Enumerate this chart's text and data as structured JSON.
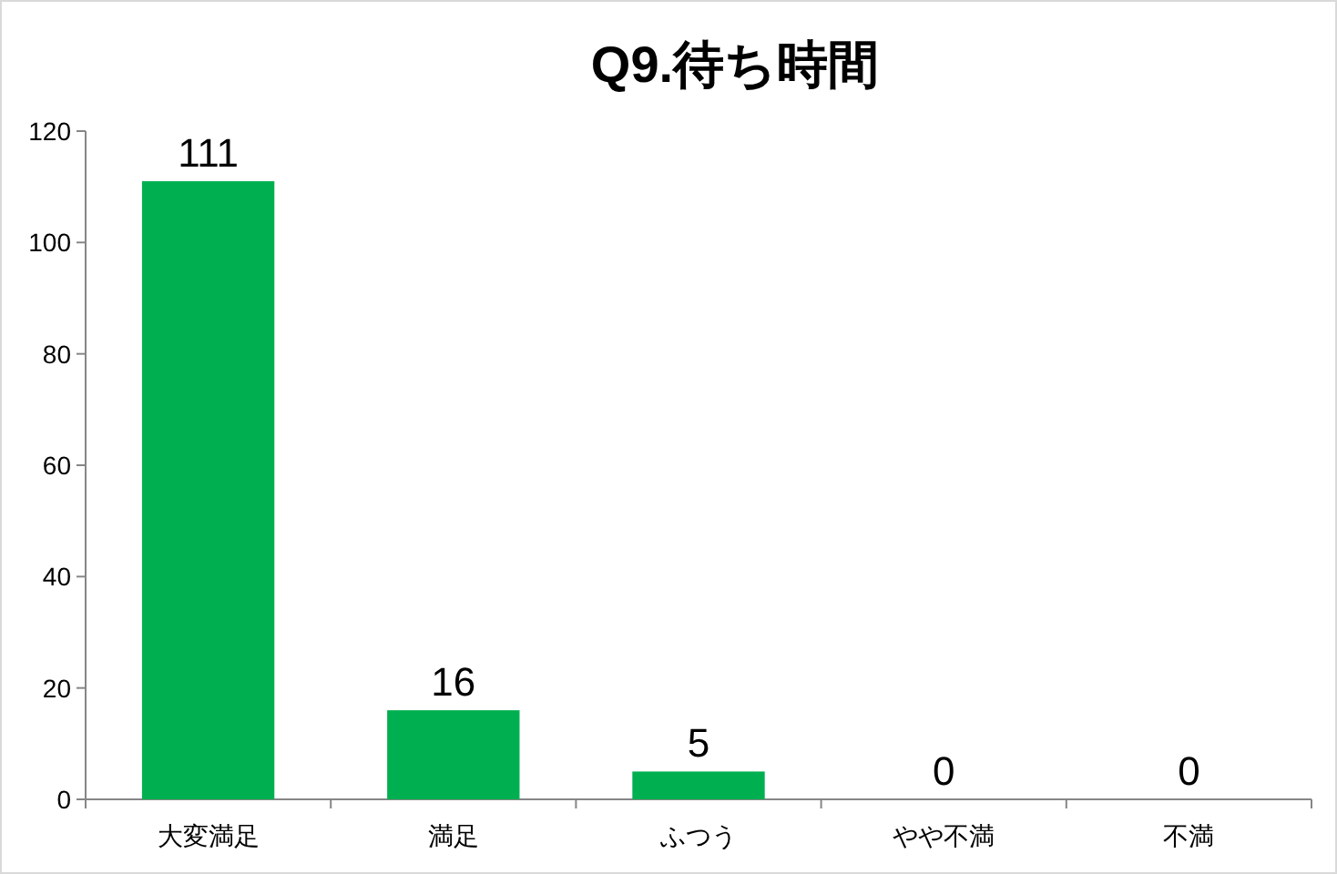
{
  "chart_data": {
    "type": "bar",
    "title": "Q9.待ち時間",
    "categories": [
      "大変満足",
      "満足",
      "ふつう",
      "やや不満",
      "不満"
    ],
    "values": [
      111,
      16,
      5,
      0,
      0
    ],
    "color": "#00b050",
    "ylim": [
      0,
      120
    ],
    "yticks": [
      0,
      20,
      40,
      60,
      80,
      100,
      120
    ],
    "data_labels": true
  }
}
